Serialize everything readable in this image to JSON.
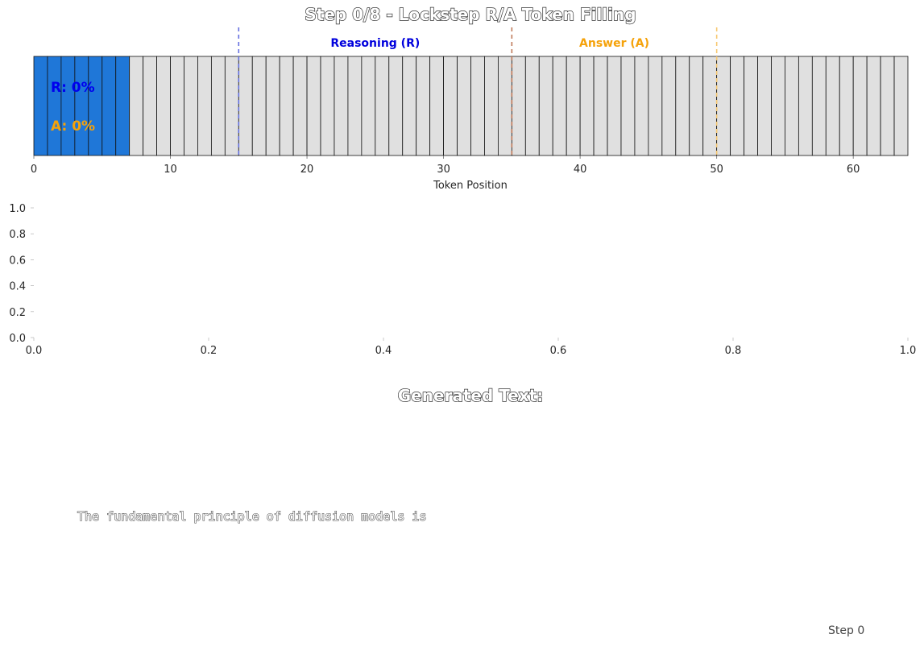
{
  "chart_data": [
    {
      "type": "heatmap",
      "title": "Step 0/8 - Lockstep R/A Token Filling",
      "xlabel": "Token Position",
      "xlim": [
        0,
        64
      ],
      "xticks": [
        0,
        10,
        20,
        30,
        40,
        50,
        60
      ],
      "token_count": 64,
      "filled_tokens": 7,
      "colors": {
        "filled": "#1f77d8",
        "empty": "#e0e0e0",
        "r_marker": "#6670e0",
        "ra_marker": "#c07a5a",
        "a_marker": "#f8c870"
      },
      "boundaries": {
        "reasoning_start": 15,
        "answer_start": 35,
        "answer_end": 50
      },
      "sections": [
        {
          "label": "Reasoning (R)",
          "center": 25
        },
        {
          "label": "Answer (A)",
          "center": 42.5
        }
      ],
      "progress": {
        "reasoning_label": "R: 0%",
        "answer_label": "A: 0%"
      }
    },
    {
      "type": "line",
      "xlim": [
        0,
        1
      ],
      "ylim": [
        0,
        1
      ],
      "xticks": [
        "0.0",
        "0.2",
        "0.4",
        "0.6",
        "0.8",
        "1.0"
      ],
      "yticks": [
        "0.0",
        "0.2",
        "0.4",
        "0.6",
        "0.8",
        "1.0"
      ],
      "series": []
    }
  ],
  "generated": {
    "heading": "Generated Text:",
    "text": "The fundamental principle of diffusion models is"
  },
  "footer": {
    "step_label": "Step 0"
  }
}
